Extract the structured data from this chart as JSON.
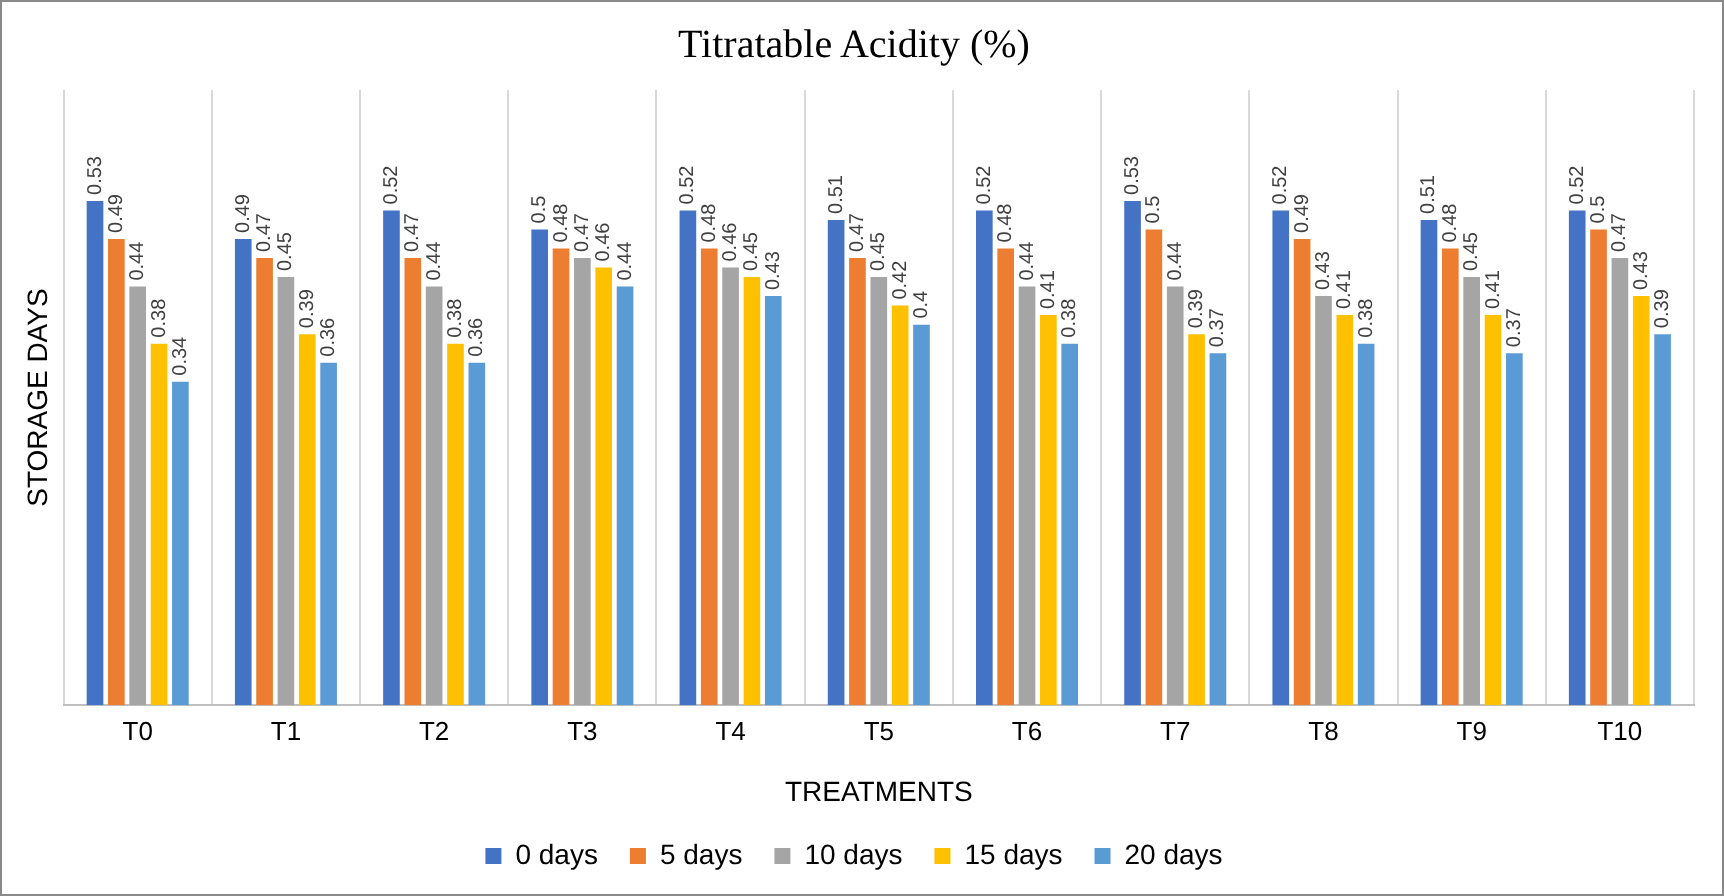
{
  "chart_data": {
    "type": "bar",
    "title": "Titratable Acidity (%)",
    "xlabel": "TREATMENTS",
    "ylabel": "STORAGE DAYS",
    "categories": [
      "T0",
      "T1",
      "T2",
      "T3",
      "T4",
      "T5",
      "T6",
      "T7",
      "T8",
      "T9",
      "T10"
    ],
    "series": [
      {
        "name": "0 days",
        "color": "#4472c4",
        "values": [
          0.53,
          0.49,
          0.52,
          0.5,
          0.52,
          0.51,
          0.52,
          0.53,
          0.52,
          0.51,
          0.52
        ]
      },
      {
        "name": "5 days",
        "color": "#ed7d31",
        "values": [
          0.49,
          0.47,
          0.47,
          0.48,
          0.48,
          0.47,
          0.48,
          0.5,
          0.49,
          0.48,
          0.5
        ]
      },
      {
        "name": "10 days",
        "color": "#a5a5a5",
        "values": [
          0.44,
          0.45,
          0.44,
          0.47,
          0.46,
          0.45,
          0.44,
          0.44,
          0.43,
          0.45,
          0.47
        ]
      },
      {
        "name": "15 days",
        "color": "#ffc000",
        "values": [
          0.38,
          0.39,
          0.38,
          0.46,
          0.45,
          0.42,
          0.41,
          0.39,
          0.41,
          0.41,
          0.43
        ]
      },
      {
        "name": "20 days",
        "color": "#5b9bd5",
        "values": [
          0.34,
          0.36,
          0.36,
          0.44,
          0.43,
          0.4,
          0.38,
          0.37,
          0.38,
          0.37,
          0.39
        ]
      }
    ],
    "data_labels": true,
    "grid": "x",
    "legend": "bottom",
    "tick_labels": "x"
  }
}
